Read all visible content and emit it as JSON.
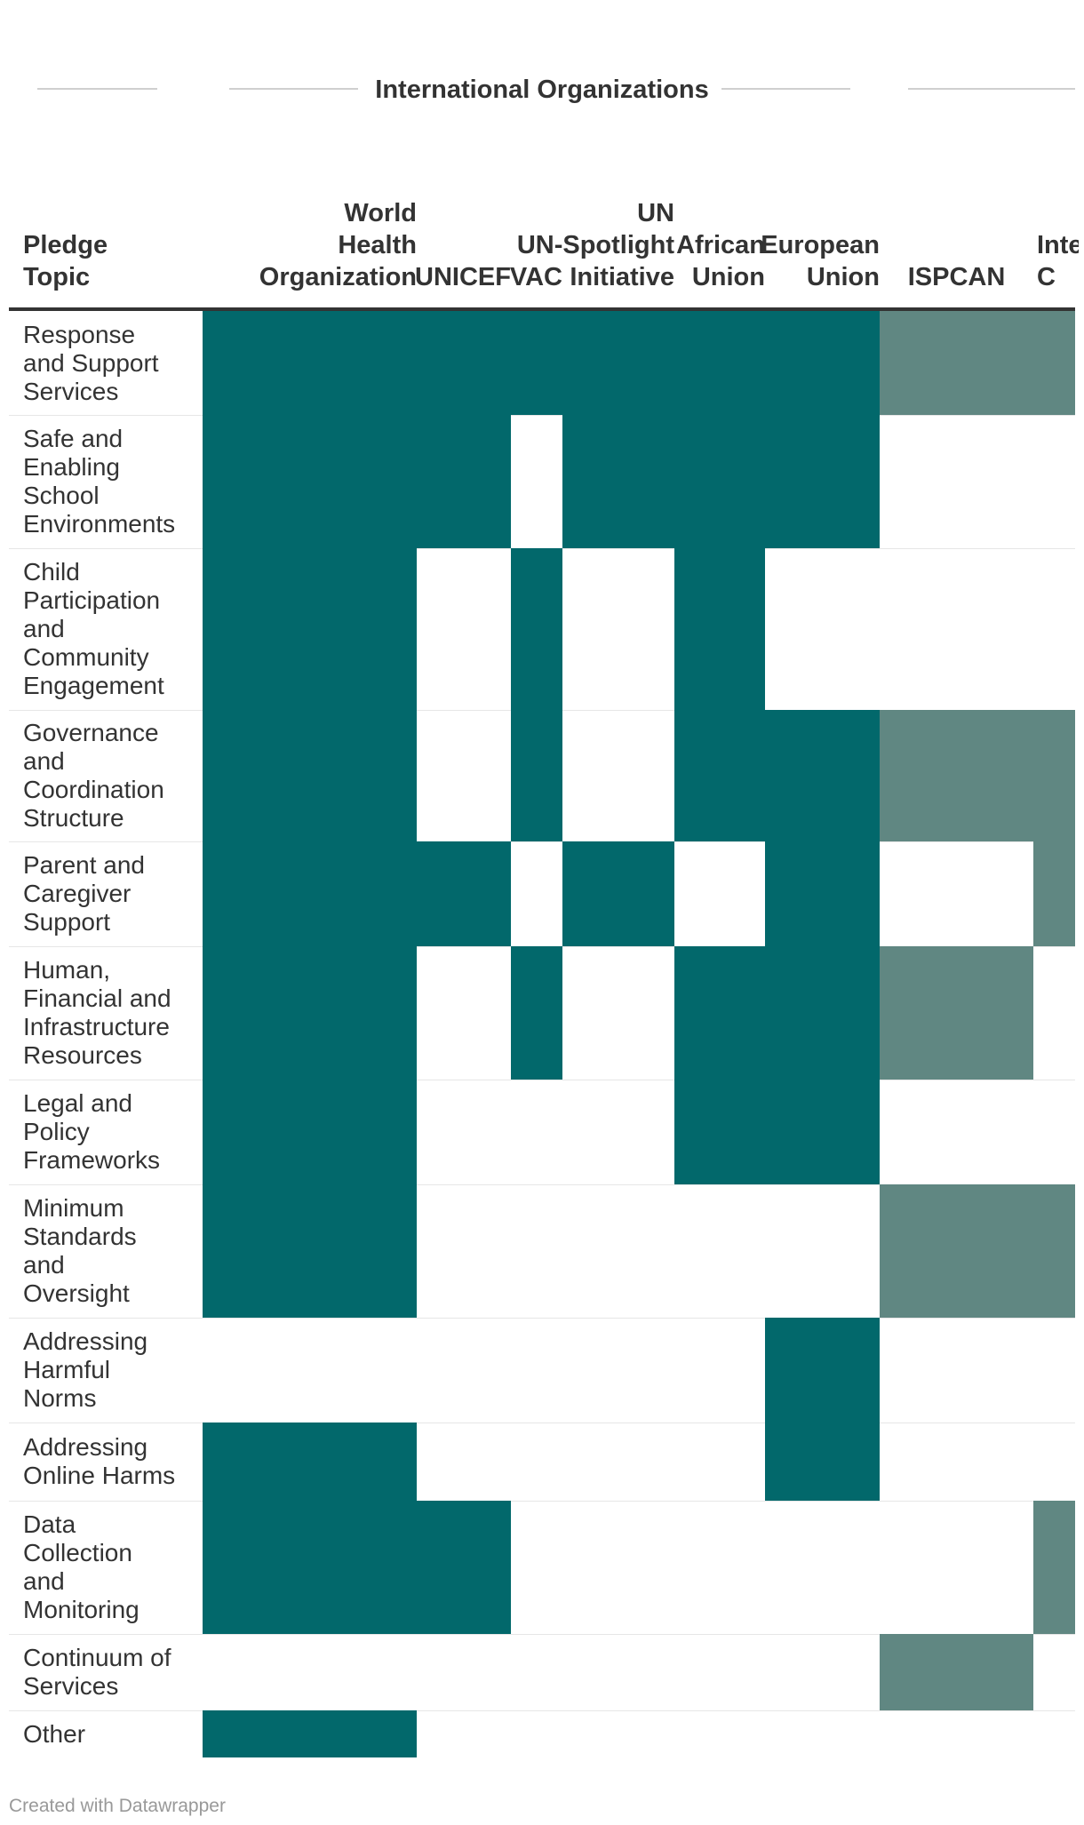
{
  "chart_data": {
    "type": "heatmap",
    "title": "",
    "column_group": "International Organizations",
    "row_header": "Pledge\nTopic",
    "columns": [
      {
        "label": "World\nHealth\nOrganization",
        "type": "A"
      },
      {
        "label": "UNICEF",
        "type": "A"
      },
      {
        "label": "VAC",
        "type": "A"
      },
      {
        "label": "UN\nUN-Spotlight\nInitiative",
        "type": "A"
      },
      {
        "label": "African\nUnion",
        "type": "A"
      },
      {
        "label": "European\nUnion",
        "type": "A"
      },
      {
        "label": "ISPCAN",
        "type": "B"
      },
      {
        "label": "Inte\nC",
        "type": "B"
      }
    ],
    "rows": [
      "Response\nand Support\nServices",
      "Safe and\nEnabling\nSchool\nEnvironments",
      "Child\nParticipation\nand\nCommunity\nEngagement",
      "Governance\nand\nCoordination\nStructure",
      "Parent and\nCaregiver\nSupport",
      "Human,\nFinancial and\nInfrastructure\nResources",
      "Legal and\nPolicy\nFrameworks",
      "Minimum\nStandards\nand\nOversight",
      "Addressing\nHarmful\nNorms",
      "Addressing\nOnline Harms",
      "Data\nCollection\nand\nMonitoring",
      "Continuum of\nServices",
      "Other"
    ],
    "values": [
      [
        1,
        1,
        1,
        1,
        1,
        1,
        1,
        1
      ],
      [
        1,
        1,
        0,
        1,
        1,
        1,
        0,
        0
      ],
      [
        1,
        0,
        1,
        0,
        1,
        0,
        0,
        0
      ],
      [
        1,
        0,
        1,
        0,
        1,
        1,
        1,
        1
      ],
      [
        1,
        1,
        0,
        1,
        0,
        1,
        0,
        1
      ],
      [
        1,
        0,
        1,
        0,
        1,
        1,
        1,
        0
      ],
      [
        1,
        0,
        0,
        0,
        1,
        1,
        0,
        0
      ],
      [
        1,
        0,
        0,
        0,
        0,
        0,
        1,
        1
      ],
      [
        0,
        0,
        0,
        0,
        0,
        1,
        0,
        0
      ],
      [
        1,
        0,
        0,
        0,
        0,
        1,
        0,
        0
      ],
      [
        1,
        1,
        0,
        0,
        0,
        0,
        0,
        1
      ],
      [
        0,
        0,
        0,
        0,
        0,
        0,
        1,
        0
      ],
      [
        1,
        0,
        0,
        0,
        0,
        0,
        0,
        0
      ]
    ],
    "colors": {
      "A": "#02686b",
      "B": "#608782"
    },
    "footer": "Created with Datawrapper"
  }
}
